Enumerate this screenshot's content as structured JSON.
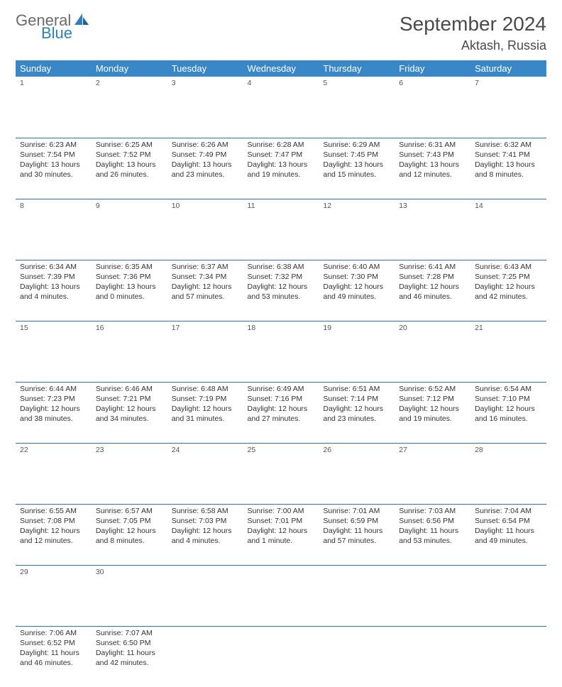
{
  "logo": {
    "general": "General",
    "blue": "Blue"
  },
  "title": "September 2024",
  "location": "Aktash, Russia",
  "colors": {
    "header_bg": "#3a87c8",
    "header_text": "#ffffff",
    "daynum_bg": "#e6e6e6",
    "rule": "#2f6fa8",
    "body_text": "#333333",
    "logo_gray": "#6b6b6b",
    "logo_blue": "#2f7fbf"
  },
  "weekdays": [
    "Sunday",
    "Monday",
    "Tuesday",
    "Wednesday",
    "Thursday",
    "Friday",
    "Saturday"
  ],
  "weeks": [
    [
      {
        "n": "1",
        "sunrise": "6:23 AM",
        "sunset": "7:54 PM",
        "daylight": "13 hours and 30 minutes."
      },
      {
        "n": "2",
        "sunrise": "6:25 AM",
        "sunset": "7:52 PM",
        "daylight": "13 hours and 26 minutes."
      },
      {
        "n": "3",
        "sunrise": "6:26 AM",
        "sunset": "7:49 PM",
        "daylight": "13 hours and 23 minutes."
      },
      {
        "n": "4",
        "sunrise": "6:28 AM",
        "sunset": "7:47 PM",
        "daylight": "13 hours and 19 minutes."
      },
      {
        "n": "5",
        "sunrise": "6:29 AM",
        "sunset": "7:45 PM",
        "daylight": "13 hours and 15 minutes."
      },
      {
        "n": "6",
        "sunrise": "6:31 AM",
        "sunset": "7:43 PM",
        "daylight": "13 hours and 12 minutes."
      },
      {
        "n": "7",
        "sunrise": "6:32 AM",
        "sunset": "7:41 PM",
        "daylight": "13 hours and 8 minutes."
      }
    ],
    [
      {
        "n": "8",
        "sunrise": "6:34 AM",
        "sunset": "7:39 PM",
        "daylight": "13 hours and 4 minutes."
      },
      {
        "n": "9",
        "sunrise": "6:35 AM",
        "sunset": "7:36 PM",
        "daylight": "13 hours and 0 minutes."
      },
      {
        "n": "10",
        "sunrise": "6:37 AM",
        "sunset": "7:34 PM",
        "daylight": "12 hours and 57 minutes."
      },
      {
        "n": "11",
        "sunrise": "6:38 AM",
        "sunset": "7:32 PM",
        "daylight": "12 hours and 53 minutes."
      },
      {
        "n": "12",
        "sunrise": "6:40 AM",
        "sunset": "7:30 PM",
        "daylight": "12 hours and 49 minutes."
      },
      {
        "n": "13",
        "sunrise": "6:41 AM",
        "sunset": "7:28 PM",
        "daylight": "12 hours and 46 minutes."
      },
      {
        "n": "14",
        "sunrise": "6:43 AM",
        "sunset": "7:25 PM",
        "daylight": "12 hours and 42 minutes."
      }
    ],
    [
      {
        "n": "15",
        "sunrise": "6:44 AM",
        "sunset": "7:23 PM",
        "daylight": "12 hours and 38 minutes."
      },
      {
        "n": "16",
        "sunrise": "6:46 AM",
        "sunset": "7:21 PM",
        "daylight": "12 hours and 34 minutes."
      },
      {
        "n": "17",
        "sunrise": "6:48 AM",
        "sunset": "7:19 PM",
        "daylight": "12 hours and 31 minutes."
      },
      {
        "n": "18",
        "sunrise": "6:49 AM",
        "sunset": "7:16 PM",
        "daylight": "12 hours and 27 minutes."
      },
      {
        "n": "19",
        "sunrise": "6:51 AM",
        "sunset": "7:14 PM",
        "daylight": "12 hours and 23 minutes."
      },
      {
        "n": "20",
        "sunrise": "6:52 AM",
        "sunset": "7:12 PM",
        "daylight": "12 hours and 19 minutes."
      },
      {
        "n": "21",
        "sunrise": "6:54 AM",
        "sunset": "7:10 PM",
        "daylight": "12 hours and 16 minutes."
      }
    ],
    [
      {
        "n": "22",
        "sunrise": "6:55 AM",
        "sunset": "7:08 PM",
        "daylight": "12 hours and 12 minutes."
      },
      {
        "n": "23",
        "sunrise": "6:57 AM",
        "sunset": "7:05 PM",
        "daylight": "12 hours and 8 minutes."
      },
      {
        "n": "24",
        "sunrise": "6:58 AM",
        "sunset": "7:03 PM",
        "daylight": "12 hours and 4 minutes."
      },
      {
        "n": "25",
        "sunrise": "7:00 AM",
        "sunset": "7:01 PM",
        "daylight": "12 hours and 1 minute."
      },
      {
        "n": "26",
        "sunrise": "7:01 AM",
        "sunset": "6:59 PM",
        "daylight": "11 hours and 57 minutes."
      },
      {
        "n": "27",
        "sunrise": "7:03 AM",
        "sunset": "6:56 PM",
        "daylight": "11 hours and 53 minutes."
      },
      {
        "n": "28",
        "sunrise": "7:04 AM",
        "sunset": "6:54 PM",
        "daylight": "11 hours and 49 minutes."
      }
    ],
    [
      {
        "n": "29",
        "sunrise": "7:06 AM",
        "sunset": "6:52 PM",
        "daylight": "11 hours and 46 minutes."
      },
      {
        "n": "30",
        "sunrise": "7:07 AM",
        "sunset": "6:50 PM",
        "daylight": "11 hours and 42 minutes."
      },
      null,
      null,
      null,
      null,
      null
    ]
  ],
  "labels": {
    "sunrise": "Sunrise: ",
    "sunset": "Sunset: ",
    "daylight": "Daylight: "
  }
}
